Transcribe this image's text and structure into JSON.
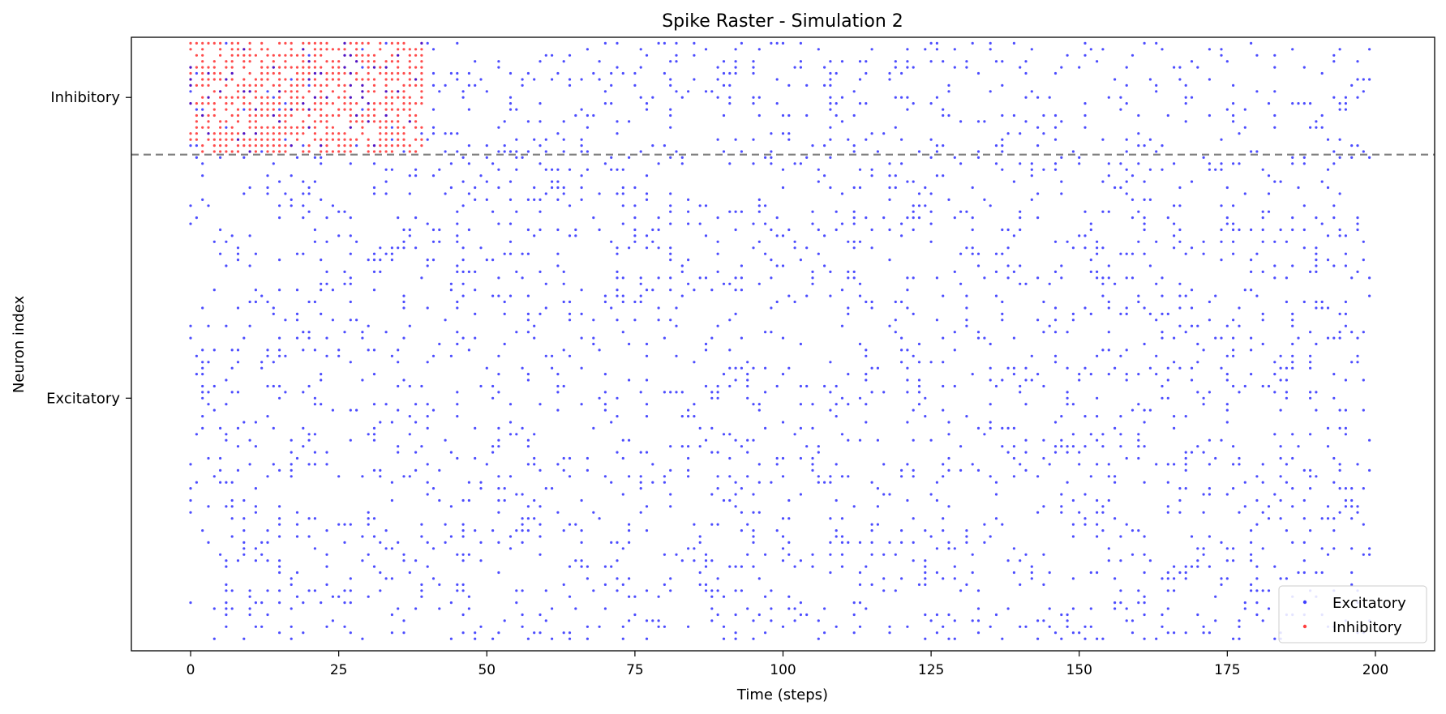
{
  "chart_data": {
    "type": "scatter",
    "title": "Spike Raster - Simulation 2",
    "xlabel": "Time (steps)",
    "ylabel": "Neuron index",
    "xlim": [
      -10,
      210
    ],
    "ylim": [
      -2,
      100
    ],
    "x_ticks": [
      0,
      25,
      50,
      75,
      100,
      125,
      150,
      175,
      200
    ],
    "y_ticks": [
      {
        "value": 40,
        "label": "Excitatory"
      },
      {
        "value": 90,
        "label": "Inhibitory"
      }
    ],
    "separator_y": 80.5,
    "grid": false,
    "legend": {
      "position": "bottom-right",
      "entries": [
        {
          "label": "Excitatory",
          "color": "#0000ff"
        },
        {
          "label": "Inhibitory",
          "color": "#ff0000"
        }
      ]
    },
    "series": [
      {
        "name": "Excitatory",
        "color": "#0000ff",
        "neurons": [
          0,
          80
        ],
        "time_range": [
          0,
          199
        ],
        "approx_rate": 0.13
      },
      {
        "name": "Inhibitory",
        "color": "#ff0000",
        "neurons": [
          81,
          99
        ],
        "time_range": [
          0,
          39
        ],
        "approx_rate": 0.7
      },
      {
        "name": "Excitatory",
        "color": "#0000ff",
        "neurons": [
          81,
          99
        ],
        "time_range": [
          0,
          199
        ],
        "approx_rate": 0.13
      }
    ]
  }
}
